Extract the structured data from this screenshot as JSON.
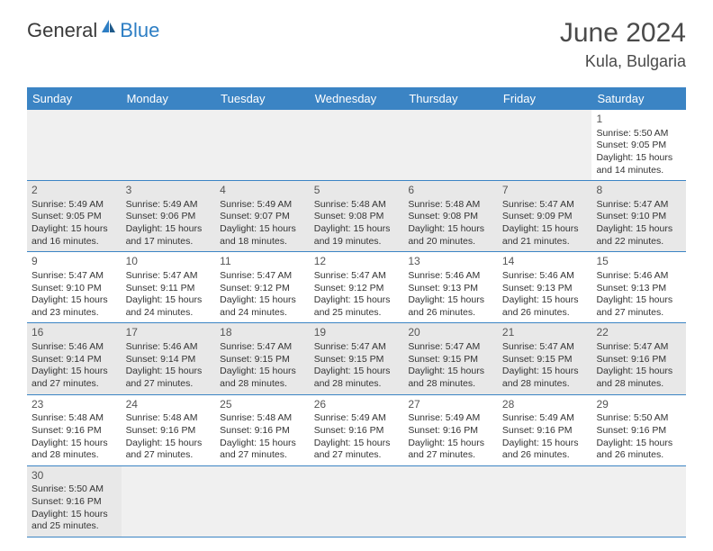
{
  "logo": {
    "text_general": "General",
    "text_blue": "Blue"
  },
  "title": "June 2024",
  "location": "Kula, Bulgaria",
  "colors": {
    "header_bg": "#3b84c4",
    "header_text": "#ffffff",
    "shaded_bg": "#e8e8e8",
    "empty_bg": "#f0f0f0",
    "border": "#3b84c4",
    "body_text": "#333333",
    "logo_gray": "#3a3a3a",
    "logo_blue": "#2d7ec4",
    "title_color": "#4a4a4a"
  },
  "day_headers": [
    "Sunday",
    "Monday",
    "Tuesday",
    "Wednesday",
    "Thursday",
    "Friday",
    "Saturday"
  ],
  "weeks": [
    [
      {
        "empty": true
      },
      {
        "empty": true
      },
      {
        "empty": true
      },
      {
        "empty": true
      },
      {
        "empty": true
      },
      {
        "empty": true
      },
      {
        "num": "1",
        "sunrise": "Sunrise: 5:50 AM",
        "sunset": "Sunset: 9:05 PM",
        "daylight1": "Daylight: 15 hours",
        "daylight2": "and 14 minutes."
      }
    ],
    [
      {
        "num": "2",
        "shaded": true,
        "sunrise": "Sunrise: 5:49 AM",
        "sunset": "Sunset: 9:05 PM",
        "daylight1": "Daylight: 15 hours",
        "daylight2": "and 16 minutes."
      },
      {
        "num": "3",
        "shaded": true,
        "sunrise": "Sunrise: 5:49 AM",
        "sunset": "Sunset: 9:06 PM",
        "daylight1": "Daylight: 15 hours",
        "daylight2": "and 17 minutes."
      },
      {
        "num": "4",
        "shaded": true,
        "sunrise": "Sunrise: 5:49 AM",
        "sunset": "Sunset: 9:07 PM",
        "daylight1": "Daylight: 15 hours",
        "daylight2": "and 18 minutes."
      },
      {
        "num": "5",
        "shaded": true,
        "sunrise": "Sunrise: 5:48 AM",
        "sunset": "Sunset: 9:08 PM",
        "daylight1": "Daylight: 15 hours",
        "daylight2": "and 19 minutes."
      },
      {
        "num": "6",
        "shaded": true,
        "sunrise": "Sunrise: 5:48 AM",
        "sunset": "Sunset: 9:08 PM",
        "daylight1": "Daylight: 15 hours",
        "daylight2": "and 20 minutes."
      },
      {
        "num": "7",
        "shaded": true,
        "sunrise": "Sunrise: 5:47 AM",
        "sunset": "Sunset: 9:09 PM",
        "daylight1": "Daylight: 15 hours",
        "daylight2": "and 21 minutes."
      },
      {
        "num": "8",
        "shaded": true,
        "sunrise": "Sunrise: 5:47 AM",
        "sunset": "Sunset: 9:10 PM",
        "daylight1": "Daylight: 15 hours",
        "daylight2": "and 22 minutes."
      }
    ],
    [
      {
        "num": "9",
        "sunrise": "Sunrise: 5:47 AM",
        "sunset": "Sunset: 9:10 PM",
        "daylight1": "Daylight: 15 hours",
        "daylight2": "and 23 minutes."
      },
      {
        "num": "10",
        "sunrise": "Sunrise: 5:47 AM",
        "sunset": "Sunset: 9:11 PM",
        "daylight1": "Daylight: 15 hours",
        "daylight2": "and 24 minutes."
      },
      {
        "num": "11",
        "sunrise": "Sunrise: 5:47 AM",
        "sunset": "Sunset: 9:12 PM",
        "daylight1": "Daylight: 15 hours",
        "daylight2": "and 24 minutes."
      },
      {
        "num": "12",
        "sunrise": "Sunrise: 5:47 AM",
        "sunset": "Sunset: 9:12 PM",
        "daylight1": "Daylight: 15 hours",
        "daylight2": "and 25 minutes."
      },
      {
        "num": "13",
        "sunrise": "Sunrise: 5:46 AM",
        "sunset": "Sunset: 9:13 PM",
        "daylight1": "Daylight: 15 hours",
        "daylight2": "and 26 minutes."
      },
      {
        "num": "14",
        "sunrise": "Sunrise: 5:46 AM",
        "sunset": "Sunset: 9:13 PM",
        "daylight1": "Daylight: 15 hours",
        "daylight2": "and 26 minutes."
      },
      {
        "num": "15",
        "sunrise": "Sunrise: 5:46 AM",
        "sunset": "Sunset: 9:13 PM",
        "daylight1": "Daylight: 15 hours",
        "daylight2": "and 27 minutes."
      }
    ],
    [
      {
        "num": "16",
        "shaded": true,
        "sunrise": "Sunrise: 5:46 AM",
        "sunset": "Sunset: 9:14 PM",
        "daylight1": "Daylight: 15 hours",
        "daylight2": "and 27 minutes."
      },
      {
        "num": "17",
        "shaded": true,
        "sunrise": "Sunrise: 5:46 AM",
        "sunset": "Sunset: 9:14 PM",
        "daylight1": "Daylight: 15 hours",
        "daylight2": "and 27 minutes."
      },
      {
        "num": "18",
        "shaded": true,
        "sunrise": "Sunrise: 5:47 AM",
        "sunset": "Sunset: 9:15 PM",
        "daylight1": "Daylight: 15 hours",
        "daylight2": "and 28 minutes."
      },
      {
        "num": "19",
        "shaded": true,
        "sunrise": "Sunrise: 5:47 AM",
        "sunset": "Sunset: 9:15 PM",
        "daylight1": "Daylight: 15 hours",
        "daylight2": "and 28 minutes."
      },
      {
        "num": "20",
        "shaded": true,
        "sunrise": "Sunrise: 5:47 AM",
        "sunset": "Sunset: 9:15 PM",
        "daylight1": "Daylight: 15 hours",
        "daylight2": "and 28 minutes."
      },
      {
        "num": "21",
        "shaded": true,
        "sunrise": "Sunrise: 5:47 AM",
        "sunset": "Sunset: 9:15 PM",
        "daylight1": "Daylight: 15 hours",
        "daylight2": "and 28 minutes."
      },
      {
        "num": "22",
        "shaded": true,
        "sunrise": "Sunrise: 5:47 AM",
        "sunset": "Sunset: 9:16 PM",
        "daylight1": "Daylight: 15 hours",
        "daylight2": "and 28 minutes."
      }
    ],
    [
      {
        "num": "23",
        "sunrise": "Sunrise: 5:48 AM",
        "sunset": "Sunset: 9:16 PM",
        "daylight1": "Daylight: 15 hours",
        "daylight2": "and 28 minutes."
      },
      {
        "num": "24",
        "sunrise": "Sunrise: 5:48 AM",
        "sunset": "Sunset: 9:16 PM",
        "daylight1": "Daylight: 15 hours",
        "daylight2": "and 27 minutes."
      },
      {
        "num": "25",
        "sunrise": "Sunrise: 5:48 AM",
        "sunset": "Sunset: 9:16 PM",
        "daylight1": "Daylight: 15 hours",
        "daylight2": "and 27 minutes."
      },
      {
        "num": "26",
        "sunrise": "Sunrise: 5:49 AM",
        "sunset": "Sunset: 9:16 PM",
        "daylight1": "Daylight: 15 hours",
        "daylight2": "and 27 minutes."
      },
      {
        "num": "27",
        "sunrise": "Sunrise: 5:49 AM",
        "sunset": "Sunset: 9:16 PM",
        "daylight1": "Daylight: 15 hours",
        "daylight2": "and 27 minutes."
      },
      {
        "num": "28",
        "sunrise": "Sunrise: 5:49 AM",
        "sunset": "Sunset: 9:16 PM",
        "daylight1": "Daylight: 15 hours",
        "daylight2": "and 26 minutes."
      },
      {
        "num": "29",
        "sunrise": "Sunrise: 5:50 AM",
        "sunset": "Sunset: 9:16 PM",
        "daylight1": "Daylight: 15 hours",
        "daylight2": "and 26 minutes."
      }
    ],
    [
      {
        "num": "30",
        "shaded": true,
        "sunrise": "Sunrise: 5:50 AM",
        "sunset": "Sunset: 9:16 PM",
        "daylight1": "Daylight: 15 hours",
        "daylight2": "and 25 minutes."
      },
      {
        "empty": true
      },
      {
        "empty": true
      },
      {
        "empty": true
      },
      {
        "empty": true
      },
      {
        "empty": true
      },
      {
        "empty": true
      }
    ]
  ]
}
